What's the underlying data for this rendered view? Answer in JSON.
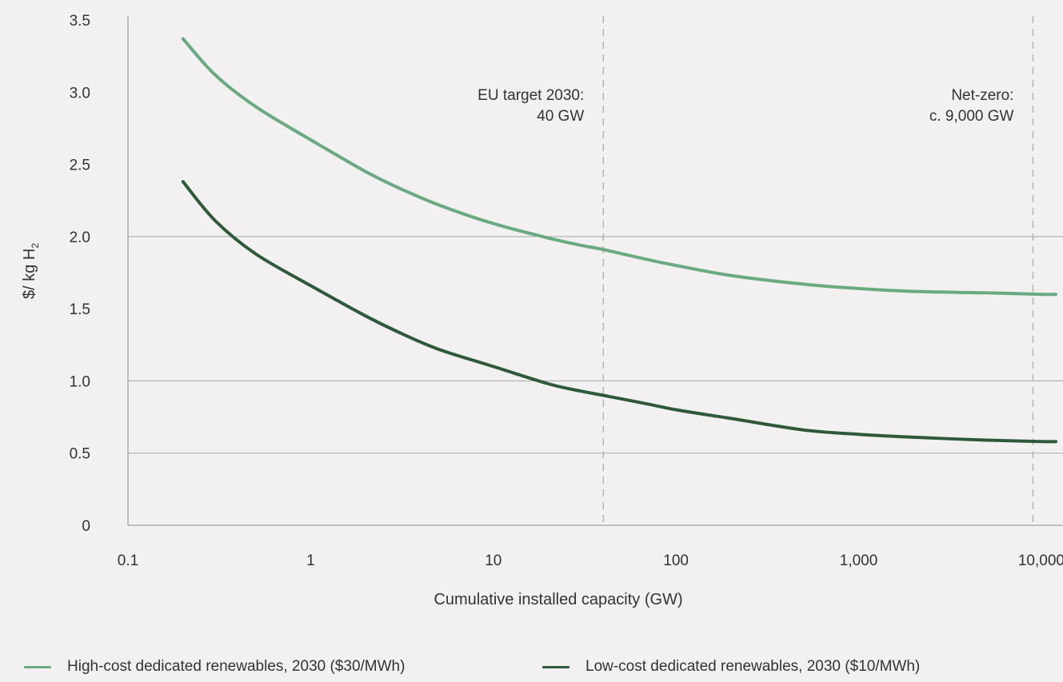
{
  "chart_data": {
    "type": "line",
    "title": "",
    "xlabel": "Cumulative installed capacity (GW)",
    "ylabel": "$/ kg H",
    "ylabel_subscript": "2",
    "xscale": "log",
    "xlim": [
      0.1,
      12000
    ],
    "ylim": [
      0,
      3.5
    ],
    "xticks": [
      0.1,
      1,
      10,
      100,
      1000,
      10000
    ],
    "xtick_labels": [
      "0.1",
      "1",
      "10",
      "100",
      "1,000",
      "10,000"
    ],
    "yticks": [
      0,
      0.5,
      1.0,
      1.5,
      2.0,
      2.5,
      3.0,
      3.5
    ],
    "ytick_labels": [
      "0",
      "0.5",
      "1.0",
      "1.5",
      "2.0",
      "2.5",
      "3.0",
      "3.5"
    ],
    "gridlines_y": [
      0.5,
      1.0,
      2.0
    ],
    "legend_position": "bottom",
    "series": [
      {
        "name": "High-cost dedicated renewables, 2030 ($30/MWh)",
        "color": "#6aaa80",
        "x": [
          0.2,
          0.3,
          0.5,
          1,
          2,
          3,
          5,
          10,
          20,
          30,
          40,
          70,
          100,
          200,
          500,
          1000,
          2000,
          5000,
          10000,
          12000
        ],
        "y": [
          3.37,
          3.12,
          2.9,
          2.67,
          2.45,
          2.34,
          2.22,
          2.09,
          1.99,
          1.94,
          1.91,
          1.84,
          1.8,
          1.73,
          1.67,
          1.64,
          1.62,
          1.61,
          1.6,
          1.6
        ]
      },
      {
        "name": "Low-cost dedicated renewables, 2030 ($10/MWh)",
        "color": "#2f5a3a",
        "x": [
          0.2,
          0.3,
          0.5,
          1,
          2,
          3,
          5,
          10,
          20,
          30,
          40,
          70,
          100,
          200,
          500,
          1000,
          2000,
          5000,
          10000,
          12000
        ],
        "y": [
          2.38,
          2.11,
          1.88,
          1.66,
          1.45,
          1.34,
          1.22,
          1.1,
          0.98,
          0.93,
          0.9,
          0.84,
          0.8,
          0.74,
          0.66,
          0.63,
          0.61,
          0.59,
          0.58,
          0.58
        ]
      }
    ],
    "reference_lines": [
      {
        "x": 40,
        "style": "dashed",
        "label_line1": "EU target 2030:",
        "label_line2": "40 GW"
      },
      {
        "x": 9000,
        "style": "dashed",
        "label_line1": "Net-zero:",
        "label_line2": "c. 9,000 GW"
      }
    ]
  },
  "colors": {
    "background": "#f2f0f0",
    "gridline": "#a8a8a8",
    "axis": "#8c8c8c",
    "reference_line": "#b4b4b4",
    "text": "#333333"
  }
}
